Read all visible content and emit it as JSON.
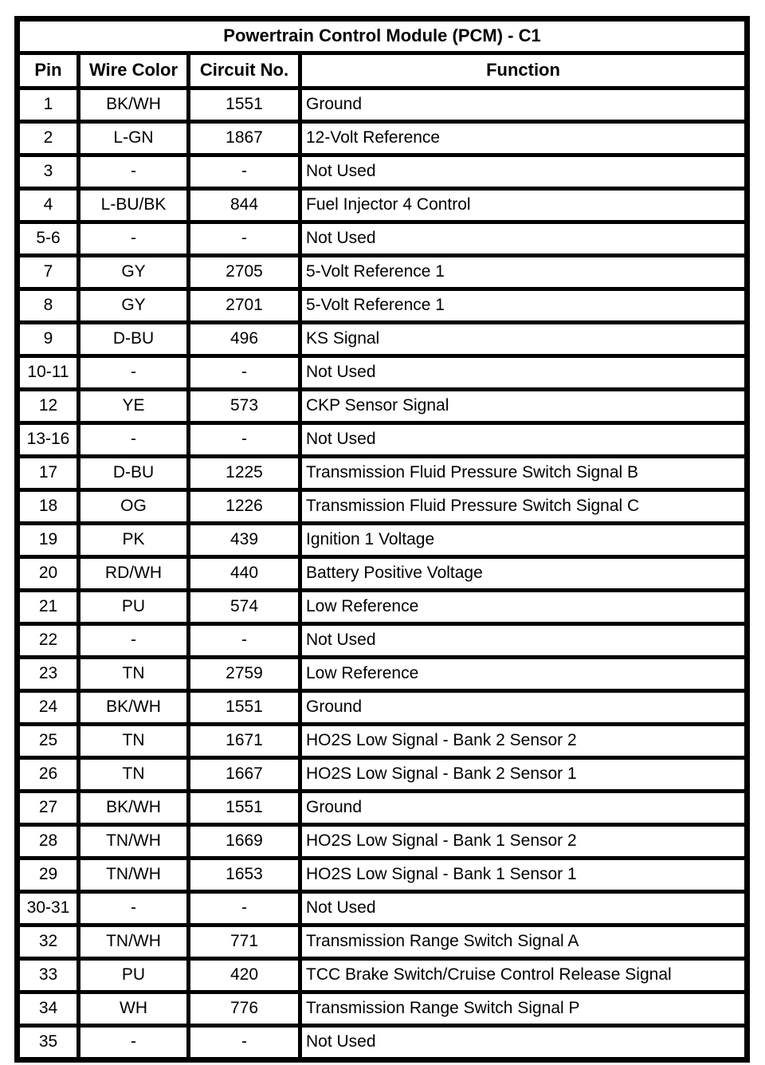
{
  "page": {
    "background_color": "#ffffff",
    "border_color": "#000000",
    "text_color": "#000000"
  },
  "table": {
    "title": "Powertrain Control Module (PCM) - C1",
    "columns": [
      "Pin",
      "Wire Color",
      "Circuit No.",
      "Function"
    ],
    "rows": [
      {
        "pin": "1",
        "wire_color": "BK/WH",
        "circuit_no": "1551",
        "function": "Ground"
      },
      {
        "pin": "2",
        "wire_color": "L-GN",
        "circuit_no": "1867",
        "function": "12-Volt Reference"
      },
      {
        "pin": "3",
        "wire_color": "-",
        "circuit_no": "-",
        "function": "Not Used"
      },
      {
        "pin": "4",
        "wire_color": "L-BU/BK",
        "circuit_no": "844",
        "function": "Fuel Injector 4 Control"
      },
      {
        "pin": "5-6",
        "wire_color": "-",
        "circuit_no": "-",
        "function": "Not Used"
      },
      {
        "pin": "7",
        "wire_color": "GY",
        "circuit_no": "2705",
        "function": "5-Volt Reference 1"
      },
      {
        "pin": "8",
        "wire_color": "GY",
        "circuit_no": "2701",
        "function": "5-Volt Reference 1"
      },
      {
        "pin": "9",
        "wire_color": "D-BU",
        "circuit_no": "496",
        "function": "KS Signal"
      },
      {
        "pin": "10-11",
        "wire_color": "-",
        "circuit_no": "-",
        "function": "Not Used"
      },
      {
        "pin": "12",
        "wire_color": "YE",
        "circuit_no": "573",
        "function": "CKP Sensor Signal"
      },
      {
        "pin": "13-16",
        "wire_color": "-",
        "circuit_no": "-",
        "function": "Not Used"
      },
      {
        "pin": "17",
        "wire_color": "D-BU",
        "circuit_no": "1225",
        "function": "Transmission Fluid Pressure Switch Signal B"
      },
      {
        "pin": "18",
        "wire_color": "OG",
        "circuit_no": "1226",
        "function": "Transmission Fluid Pressure Switch Signal C"
      },
      {
        "pin": "19",
        "wire_color": "PK",
        "circuit_no": "439",
        "function": "Ignition 1 Voltage"
      },
      {
        "pin": "20",
        "wire_color": "RD/WH",
        "circuit_no": "440",
        "function": "Battery Positive Voltage"
      },
      {
        "pin": "21",
        "wire_color": "PU",
        "circuit_no": "574",
        "function": "Low Reference"
      },
      {
        "pin": "22",
        "wire_color": "-",
        "circuit_no": "-",
        "function": "Not Used"
      },
      {
        "pin": "23",
        "wire_color": "TN",
        "circuit_no": "2759",
        "function": "Low Reference"
      },
      {
        "pin": "24",
        "wire_color": "BK/WH",
        "circuit_no": "1551",
        "function": "Ground"
      },
      {
        "pin": "25",
        "wire_color": "TN",
        "circuit_no": "1671",
        "function": "HO2S Low Signal - Bank 2 Sensor 2"
      },
      {
        "pin": "26",
        "wire_color": "TN",
        "circuit_no": "1667",
        "function": "HO2S Low Signal - Bank 2 Sensor 1"
      },
      {
        "pin": "27",
        "wire_color": "BK/WH",
        "circuit_no": "1551",
        "function": "Ground"
      },
      {
        "pin": "28",
        "wire_color": "TN/WH",
        "circuit_no": "1669",
        "function": "HO2S Low Signal - Bank 1 Sensor 2"
      },
      {
        "pin": "29",
        "wire_color": "TN/WH",
        "circuit_no": "1653",
        "function": "HO2S Low Signal - Bank 1 Sensor 1"
      },
      {
        "pin": "30-31",
        "wire_color": "-",
        "circuit_no": "-",
        "function": "Not Used"
      },
      {
        "pin": "32",
        "wire_color": "TN/WH",
        "circuit_no": "771",
        "function": "Transmission Range Switch Signal A"
      },
      {
        "pin": "33",
        "wire_color": "PU",
        "circuit_no": "420",
        "function": "TCC Brake Switch/Cruise Control Release Signal"
      },
      {
        "pin": "34",
        "wire_color": "WH",
        "circuit_no": "776",
        "function": "Transmission Range Switch Signal P"
      },
      {
        "pin": "35",
        "wire_color": "-",
        "circuit_no": "-",
        "function": "Not Used"
      }
    ]
  }
}
